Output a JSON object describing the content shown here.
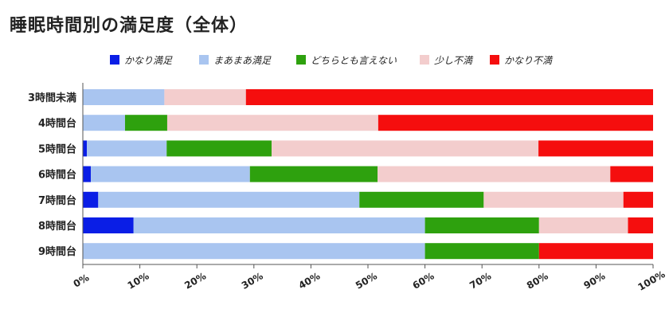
{
  "chart_data": {
    "type": "bar",
    "orientation": "horizontal",
    "stacked": "percent",
    "title": "睡眠時間別の満足度（全体）",
    "categories": [
      "3時間未満",
      "4時間台",
      "5時間台",
      "6時間台",
      "7時間台",
      "8時間台",
      "9時間台"
    ],
    "series": [
      {
        "name": "かなり満足",
        "color": "#0a1ee6",
        "values": [
          0,
          0,
          0.7,
          1.4,
          2.7,
          8.9,
          0
        ]
      },
      {
        "name": "まあまあ満足",
        "color": "#a9c5f0",
        "values": [
          14.3,
          7.4,
          14.0,
          27.9,
          45.8,
          51.1,
          60.0
        ]
      },
      {
        "name": "どちらとも言えない",
        "color": "#2ea10e",
        "values": [
          0,
          7.4,
          18.4,
          22.4,
          21.8,
          20.0,
          20.0
        ]
      },
      {
        "name": "少し不満",
        "color": "#f3cdcd",
        "values": [
          14.3,
          37.0,
          46.8,
          40.8,
          24.5,
          15.6,
          0
        ]
      },
      {
        "name": "かなり不満",
        "color": "#f50e0e",
        "values": [
          71.4,
          48.2,
          20.1,
          7.5,
          5.2,
          4.4,
          20.0
        ]
      }
    ],
    "xaxis_ticks": [
      "0%",
      "10%",
      "20%",
      "30%",
      "40%",
      "50%",
      "60%",
      "70%",
      "80%",
      "90%",
      "100%"
    ],
    "xlim": [
      0,
      100
    ],
    "legend_position": "top",
    "grid": false
  }
}
